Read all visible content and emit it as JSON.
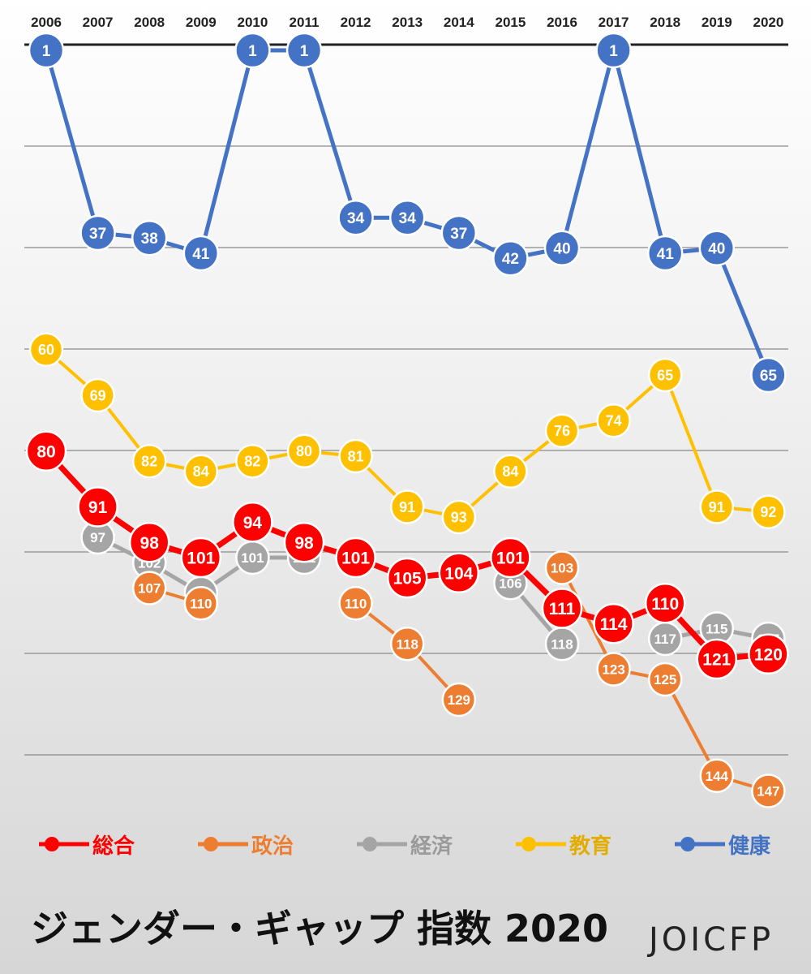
{
  "chart_data": {
    "type": "line",
    "title": "ジェンダー・ギャップ 指数 2020",
    "x": [
      "2006",
      "2007",
      "2008",
      "2009",
      "2010",
      "2011",
      "2012",
      "2013",
      "2014",
      "2015",
      "2016",
      "2017",
      "2018",
      "2019",
      "2020"
    ],
    "y_axis": {
      "direction": "inverted",
      "grid": true
    },
    "series": [
      {
        "key": "kenko",
        "name": "健康",
        "color": "#4472C4",
        "values": [
          1,
          37,
          38,
          41,
          1,
          1,
          34,
          34,
          37,
          42,
          40,
          1,
          41,
          40,
          65
        ],
        "stroke": 5,
        "radius": 21,
        "fontsize": 19
      },
      {
        "key": "kyoiku",
        "name": "教育",
        "color": "#FFC000",
        "values": [
          60,
          69,
          82,
          84,
          82,
          80,
          81,
          91,
          93,
          84,
          76,
          74,
          65,
          91,
          92
        ],
        "stroke": 4,
        "radius": 20,
        "fontsize": 18
      },
      {
        "key": "keizai",
        "name": "経済",
        "color": "#A5A5A5",
        "values": [
          null,
          97,
          102,
          108,
          101,
          101,
          null,
          null,
          null,
          106,
          118,
          null,
          117,
          115,
          117
        ],
        "stroke": 5,
        "radius": 20,
        "fontsize": 17
      },
      {
        "key": "seiji",
        "name": "政治",
        "color": "#ED7D31",
        "values": [
          null,
          null,
          107,
          110,
          null,
          null,
          110,
          118,
          129,
          null,
          103,
          123,
          125,
          144,
          147
        ],
        "stroke": 4,
        "radius": 20,
        "fontsize": 17
      },
      {
        "key": "sogo",
        "name": "総合",
        "color": "#FF0000",
        "values": [
          80,
          91,
          98,
          101,
          94,
          98,
          101,
          105,
          104,
          101,
          111,
          114,
          110,
          121,
          120
        ],
        "stroke": 7,
        "radius": 24,
        "fontsize": 21
      }
    ]
  },
  "legend": {
    "items": [
      {
        "name": "総合",
        "color": "#FF0000"
      },
      {
        "name": "政治",
        "color": "#ED7D31"
      },
      {
        "name": "経済",
        "color": "#A5A5A5"
      },
      {
        "name": "教育",
        "color": "#FFC000"
      },
      {
        "name": "健康",
        "color": "#4472C4"
      }
    ]
  },
  "footer": {
    "title": "ジェンダー・ギャップ 指数 2020",
    "logo_text": "JOICFP"
  }
}
